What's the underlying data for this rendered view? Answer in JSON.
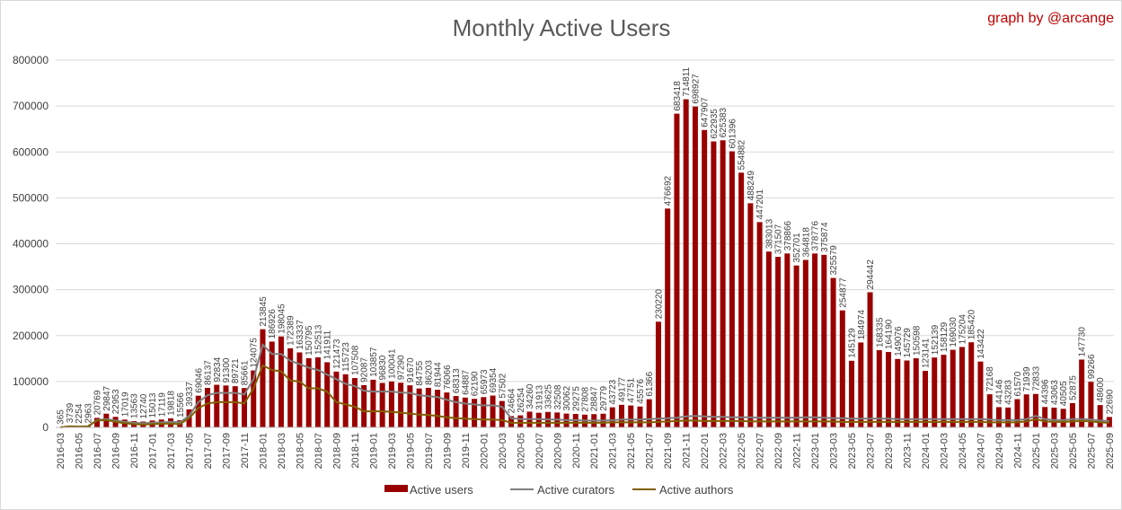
{
  "chart_data": {
    "type": "bar",
    "title": "Monthly Active Users",
    "annotation": "graph by @arcange",
    "categories": [
      "2016-03",
      null,
      "2016-05",
      null,
      "2016-07",
      null,
      "2016-09",
      null,
      "2016-11",
      null,
      "2017-01",
      null,
      "2017-03",
      null,
      "2017-05",
      null,
      "2017-07",
      null,
      "2017-09",
      null,
      "2017-11",
      null,
      "2018-01",
      null,
      "2018-03",
      null,
      "2018-05",
      null,
      "2018-07",
      null,
      "2018-09",
      null,
      "2018-11",
      null,
      "2019-01",
      null,
      "2019-03",
      null,
      "2019-05",
      null,
      "2019-07",
      null,
      "2019-09",
      null,
      "2019-11",
      null,
      "2020-01",
      null,
      "2020-03",
      null,
      "2020-05",
      null,
      "2020-07",
      null,
      "2020-09",
      null,
      "2020-11",
      null,
      "2021-01",
      null,
      "2021-03",
      null,
      "2021-05",
      null,
      "2021-07",
      null,
      "2021-09",
      null,
      "2021-11",
      null,
      "2022-01",
      null,
      "2022-03",
      null,
      "2022-05",
      null,
      "2022-07",
      null,
      "2022-09",
      null,
      "2022-11",
      null,
      "2023-01",
      null,
      "2023-03",
      null,
      "2023-05",
      null,
      "2023-07",
      null,
      "2023-09",
      null,
      "2023-11",
      null,
      "2024-01",
      null,
      "2024-03",
      null,
      "2024-05",
      null,
      "2024-07",
      null,
      "2024-09",
      null,
      "2024-11",
      null,
      "2025-01",
      null,
      "2025-03",
      null,
      "2025-05",
      null,
      "2025-07",
      null,
      "2025-09"
    ],
    "series": [
      {
        "name": "Active users",
        "color": "#990000",
        "values": [
          365,
          3739,
          2254,
          2963,
          20769,
          29847,
          22953,
          17019,
          13563,
          12740,
          15013,
          17119,
          19818,
          15566,
          39337,
          69046,
          86137,
          92834,
          91300,
          89721,
          85661,
          124075,
          213845,
          186926,
          198045,
          172389,
          163337,
          150795,
          152513,
          141911,
          121473,
          115723,
          107508,
          92087,
          103857,
          96830,
          100041,
          97290,
          91670,
          84755,
          86203,
          81944,
          76066,
          68313,
          64887,
          62190,
          65973,
          69354,
          57502,
          24664,
          26254,
          34260,
          31913,
          33625,
          32508,
          30062,
          29275,
          27808,
          28847,
          29779,
          43723,
          49177,
          47751,
          45576,
          61366,
          230220,
          476692,
          683418,
          714811,
          698927,
          647907,
          622935,
          625383,
          601396,
          554882,
          488249,
          447201,
          383013,
          371507,
          378866,
          352701,
          364818,
          378776,
          375874,
          325579,
          254877,
          145129,
          184974,
          294442,
          168335,
          164190,
          149076,
          145729,
          150598,
          123141,
          152139,
          158129,
          169030,
          175204,
          185420,
          143422,
          72168,
          44146,
          43283,
          61570,
          71939,
          72833,
          44396,
          43063,
          40505,
          52875,
          147730,
          99266,
          48600,
          22690
        ]
      },
      {
        "name": "Active curators",
        "color": "#7f7f7f",
        "type": "line",
        "values": [
          300,
          2500,
          2000,
          2500,
          16000,
          18000,
          15000,
          12000,
          10000,
          9000,
          10000,
          11000,
          12000,
          11000,
          25000,
          55000,
          70000,
          75000,
          75000,
          75000,
          72000,
          105000,
          180000,
          160000,
          160000,
          145000,
          138000,
          130000,
          125000,
          115000,
          105000,
          95000,
          90000,
          80000,
          78000,
          78000,
          78000,
          76000,
          75000,
          70000,
          68000,
          66000,
          60000,
          55000,
          52000,
          50000,
          48000,
          48000,
          45000,
          20000,
          18000,
          18000,
          18000,
          17000,
          17000,
          16000,
          16000,
          15000,
          15000,
          15000,
          16000,
          17000,
          17000,
          17000,
          18000,
          19000,
          20000,
          21000,
          24000,
          25000,
          24000,
          23000,
          23000,
          22000,
          22000,
          22000,
          21000,
          21000,
          21000,
          21000,
          21000,
          22000,
          22000,
          21000,
          20000,
          20000,
          19000,
          19000,
          19000,
          19000,
          19000,
          18000,
          18000,
          18000,
          18000,
          18000,
          18000,
          18000,
          18000,
          18000,
          18000,
          17000,
          16000,
          16000,
          16000,
          18000,
          25000,
          18000,
          16000,
          16000,
          18000,
          18000,
          17000,
          15000,
          14000
        ]
      },
      {
        "name": "Active authors",
        "color": "#806000",
        "type": "line",
        "values": [
          200,
          2000,
          1500,
          2000,
          15000,
          16000,
          12000,
          9000,
          7000,
          6000,
          7000,
          8000,
          8000,
          7000,
          20000,
          42000,
          52000,
          55000,
          55000,
          55000,
          52000,
          85000,
          135000,
          125000,
          122000,
          102000,
          100000,
          85000,
          85000,
          78000,
          55000,
          50000,
          45000,
          35000,
          35000,
          35000,
          34000,
          32000,
          30000,
          28000,
          27000,
          25000,
          22000,
          20000,
          19000,
          18000,
          17000,
          17000,
          16000,
          10000,
          10000,
          10000,
          10000,
          10000,
          10000,
          10000,
          10000,
          10000,
          10000,
          10000,
          11000,
          11000,
          11000,
          11000,
          11000,
          12000,
          13000,
          14000,
          15000,
          15000,
          14000,
          14000,
          14000,
          14000,
          14000,
          13000,
          13000,
          13000,
          13000,
          13000,
          13000,
          13000,
          13000,
          13000,
          13000,
          12000,
          12000,
          12000,
          12000,
          12000,
          12000,
          12000,
          12000,
          12000,
          12000,
          12000,
          12000,
          12000,
          12000,
          12000,
          12000,
          11000,
          11000,
          11000,
          11000,
          13000,
          18000,
          13000,
          12000,
          12000,
          13000,
          14000,
          13000,
          11000,
          10000
        ]
      }
    ],
    "ylim": [
      0,
      800000
    ],
    "yticks": [
      0,
      100000,
      200000,
      300000,
      400000,
      500000,
      600000,
      700000,
      800000
    ],
    "grid": true,
    "legend": "bottom"
  }
}
